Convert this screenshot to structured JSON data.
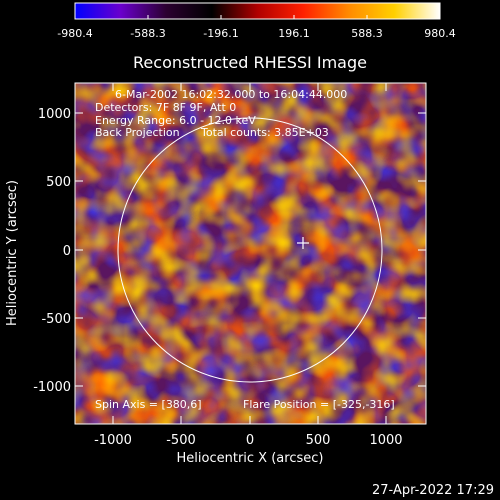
{
  "colorbar": {
    "tick_labels": [
      "-980.4",
      "-588.3",
      "-196.1",
      "196.1",
      "588.3",
      "980.4"
    ],
    "range": [
      -980.4,
      980.4
    ],
    "colors": [
      "#0000ff",
      "#6a00cc",
      "#2b0030",
      "#000000",
      "#b00000",
      "#ff2000",
      "#ff8a00",
      "#ffd000",
      "#ffffff"
    ]
  },
  "plot": {
    "title": "Reconstructed RHESSI Image",
    "xlabel": "Heliocentric X (arcsec)",
    "ylabel": "Heliocentric Y (arcsec)",
    "x_ticks": [
      "-1000",
      "-500",
      "0",
      "500",
      "1000"
    ],
    "y_ticks": [
      "1000",
      "500",
      "0",
      "-500",
      "-1000"
    ],
    "info_lines": [
      "6-Mar-2002 16:02:32.000 to 16:04:44.000",
      "Detectors: 7F 8F 9F, Att 0",
      "Energy Range: 6.0 - 12.0 keV"
    ],
    "method": "Back Projection",
    "total_counts": "Total counts: 3.85E+03",
    "spin_axis": "Spin Axis = [380,6]",
    "flare_position": "Flare Position = [-325,-316]",
    "axis_color": "#ffffff",
    "limb_color": "#ffffff"
  },
  "footer": {
    "timestamp": "27-Apr-2022 17:29"
  }
}
